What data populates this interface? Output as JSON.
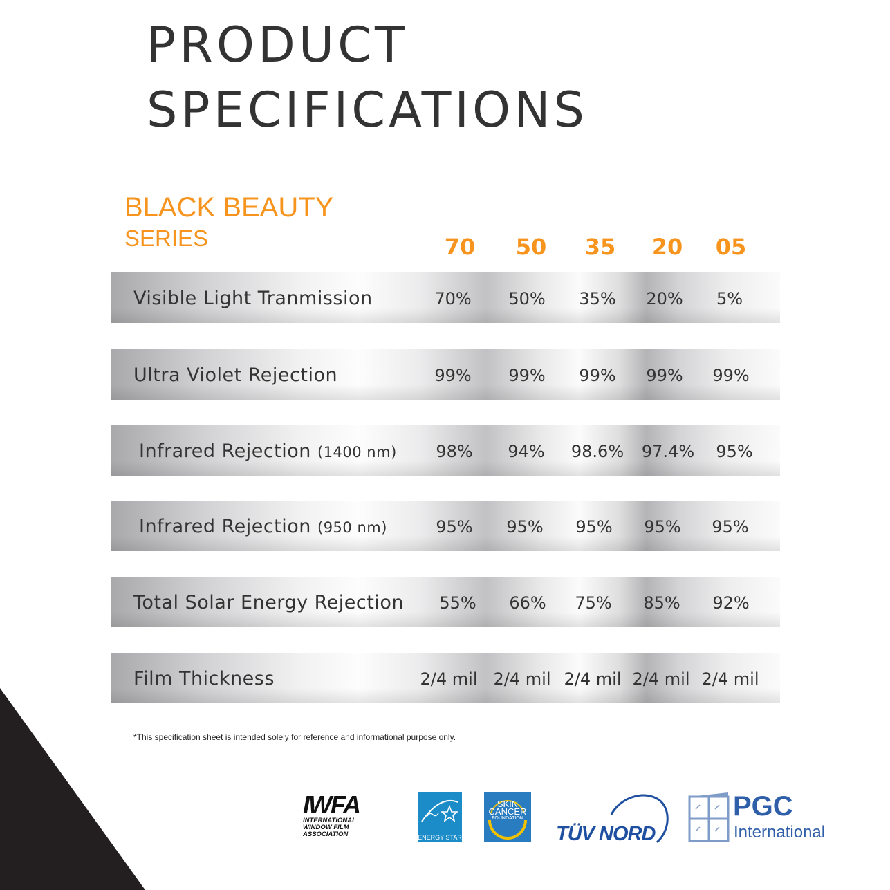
{
  "page": {
    "title_line1": "PRODUCT",
    "title_line2": "SPECIFICATIONS"
  },
  "series": {
    "name": "BLACK BEAUTY",
    "sub": "SERIES",
    "columns": [
      "70",
      "50",
      "35",
      "20",
      "05"
    ]
  },
  "specs": [
    {
      "label": "Visible Light Tranmission",
      "unit": "",
      "values": [
        "70%",
        "50%",
        "35%",
        "20%",
        "5%"
      ]
    },
    {
      "label": "Ultra Violet Rejection",
      "unit": "",
      "values": [
        "99%",
        "99%",
        "99%",
        "99%",
        "99%"
      ]
    },
    {
      "label": "Infrared Rejection",
      "unit": "(1400 nm)",
      "values": [
        "98%",
        "94%",
        "98.6%",
        "97.4%",
        "95%"
      ]
    },
    {
      "label": "Infrared Rejection",
      "unit": "(950 nm)",
      "values": [
        "95%",
        "95%",
        "95%",
        "95%",
        "95%"
      ]
    },
    {
      "label": "Total Solar Energy Rejection",
      "unit": "",
      "values": [
        "55%",
        "66%",
        "75%",
        "85%",
        "92%"
      ]
    },
    {
      "label": "Film Thickness",
      "unit": "",
      "values": [
        "2/4 mil",
        "2/4 mil",
        "2/4 mil",
        "2/4 mil",
        "2/4 mil"
      ]
    }
  ],
  "footer": {
    "disclaimer": "*This specification sheet is intended solely for reference and informational purpose only."
  },
  "logos": {
    "iwfa_mark": "IWFA",
    "iwfa_line1": "INTERNATIONAL",
    "iwfa_line2": "WINDOW FILM",
    "iwfa_line3": "ASSOCIATION",
    "energy_star": "ENERGY STAR",
    "skin_line1": "SKIN",
    "skin_line2": "CANCER",
    "skin_line3": "FOUNDATION",
    "tuv": "TÜV NORD",
    "pgc": "PGC",
    "pgc_sub": "International"
  },
  "colors": {
    "accent": "#f7941d",
    "title": "#333333",
    "corner": "#231f20",
    "logo_blue": "#2f5fa8"
  }
}
